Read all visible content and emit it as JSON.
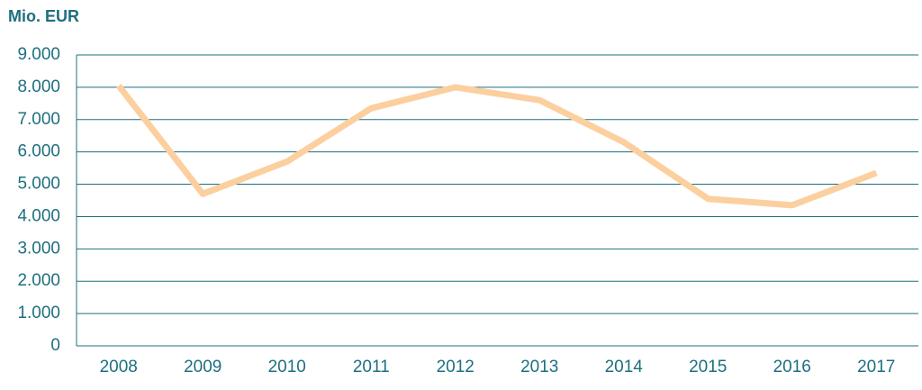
{
  "chart_data": {
    "type": "line",
    "title": "Mio. EUR",
    "categories": [
      "2008",
      "2009",
      "2010",
      "2011",
      "2012",
      "2013",
      "2014",
      "2015",
      "2016",
      "2017"
    ],
    "values": [
      8050,
      4700,
      5700,
      7350,
      8000,
      7600,
      6300,
      4550,
      4350,
      5350
    ],
    "color": "#fccf9f",
    "ylim": [
      0,
      9000
    ],
    "yticks": [
      0,
      {
        "value": 1000,
        "label": "1.000"
      },
      {
        "value": 2000,
        "label": "2.000"
      },
      {
        "value": 3000,
        "label": "3.000"
      },
      {
        "value": 4000,
        "label": "4.000"
      },
      {
        "value": 5000,
        "label": "5.000"
      },
      {
        "value": 6000,
        "label": "6.000"
      },
      {
        "value": 7000,
        "label": "7.000"
      },
      {
        "value": 8000,
        "label": "8.000"
      },
      {
        "value": 9000,
        "label": "9.000"
      }
    ],
    "grid": true
  }
}
